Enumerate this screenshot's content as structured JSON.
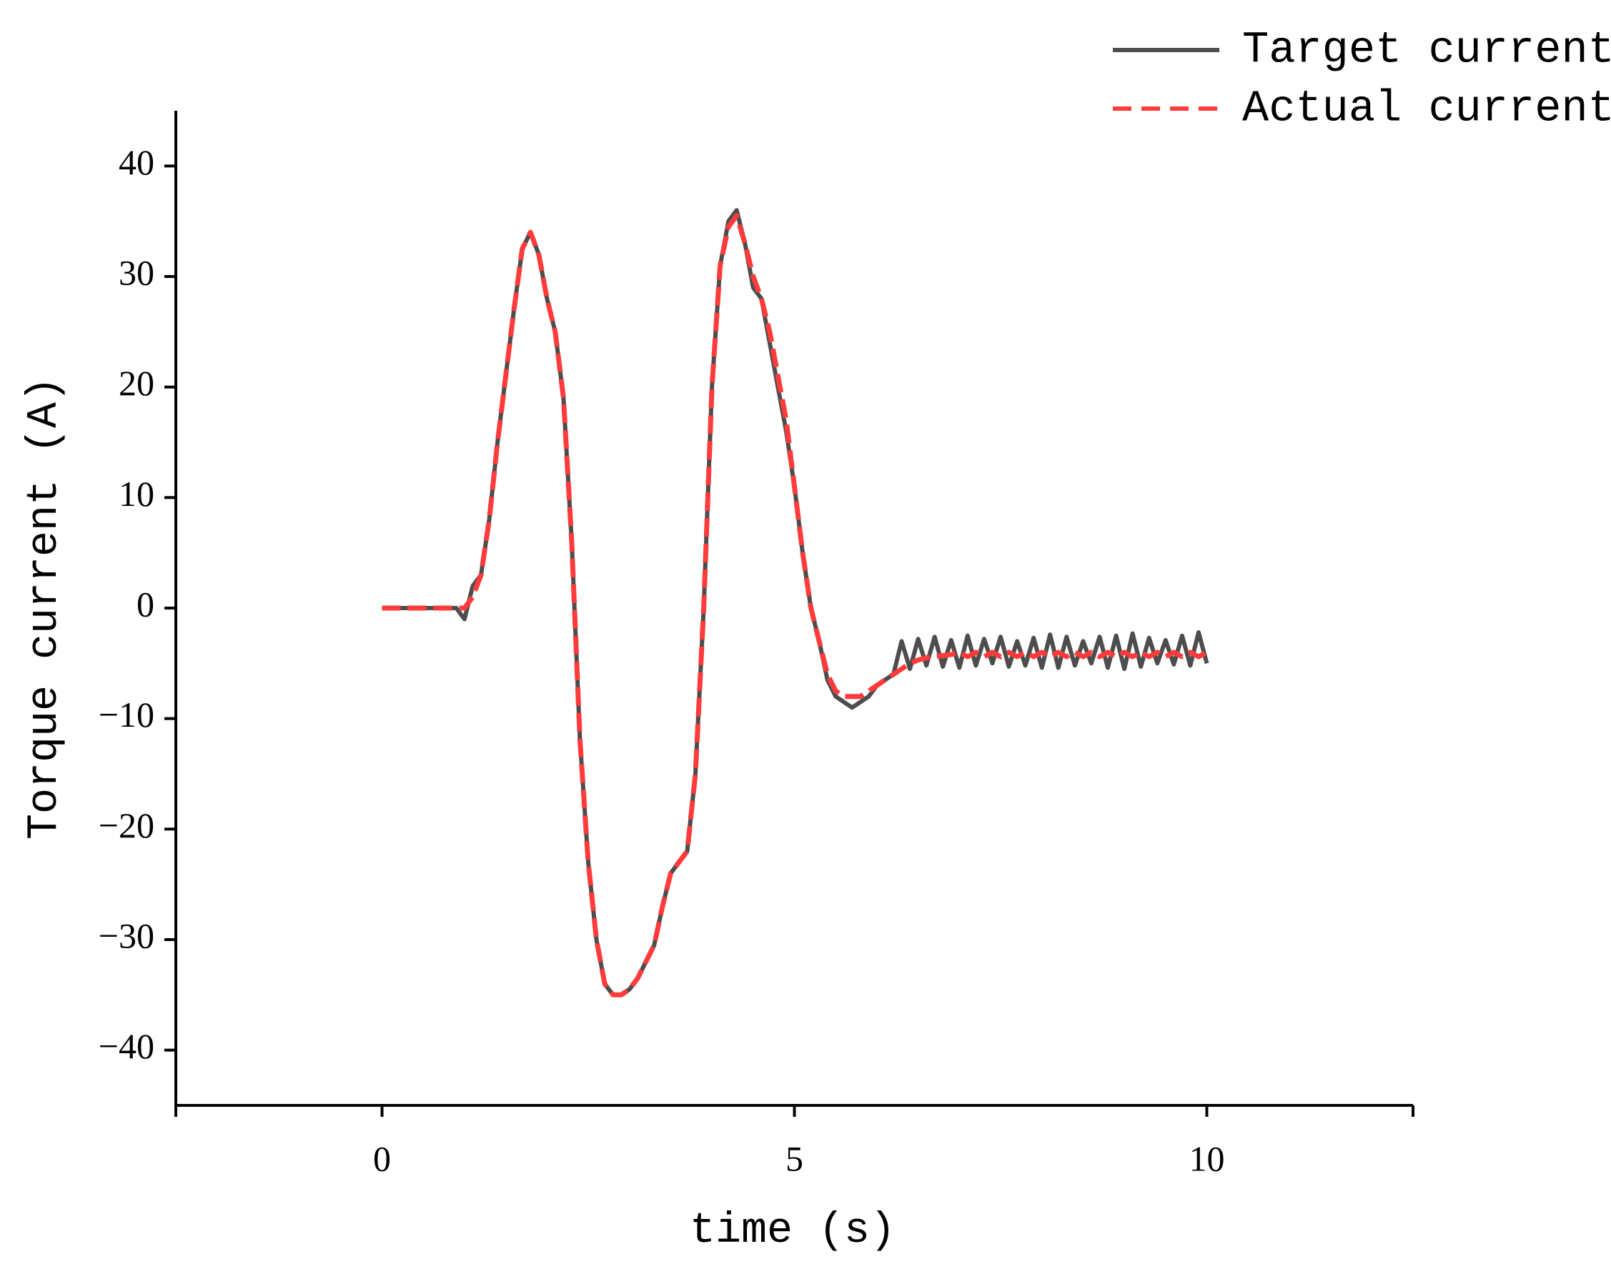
{
  "chart_data": {
    "type": "line",
    "x_label": "time (s)",
    "y_label": "Torque current (A)",
    "xlim": [
      -2.5,
      12.5
    ],
    "xticks": [
      0,
      5,
      10
    ],
    "ylim": [
      -45,
      45
    ],
    "yticks": [
      {
        "value": -40,
        "label": "−40"
      },
      {
        "value": -30,
        "label": "−30"
      },
      {
        "value": -20,
        "label": "−20"
      },
      {
        "value": -10,
        "label": "−10"
      },
      0,
      10,
      20,
      30,
      40
    ],
    "legend": "upper right",
    "x": [
      0,
      0.1,
      0.2,
      0.3,
      0.4,
      0.5,
      0.6,
      0.7,
      0.8,
      0.9,
      1,
      1.1,
      1.2,
      1.3,
      1.4,
      1.5,
      1.6,
      1.7,
      1.8,
      1.9,
      2,
      2.1,
      2.2,
      2.3,
      2.4,
      2.5,
      2.6,
      2.7,
      2.8,
      2.9,
      3,
      3.1,
      3.2,
      3.3,
      3.4,
      3.5,
      3.6,
      3.7,
      3.8,
      3.9,
      4,
      4.1,
      4.2,
      4.3,
      4.4,
      4.5,
      4.6,
      4.7,
      4.8,
      4.9,
      5,
      5.1,
      5.2,
      5.3,
      5.4,
      5.5,
      5.6,
      5.7,
      5.8,
      5.9,
      6,
      6.1,
      6.2,
      6.3,
      6.4,
      6.5,
      6.6,
      6.7,
      6.8,
      6.9,
      7,
      7.1,
      7.2,
      7.3,
      7.4,
      7.5,
      7.6,
      7.7,
      7.8,
      7.9,
      8,
      8.1,
      8.2,
      8.3,
      8.4,
      8.5,
      8.6,
      8.7,
      8.8,
      8.9,
      9,
      9.1,
      9.2,
      9.3,
      9.4,
      9.5,
      9.6,
      9.7,
      9.8,
      9.9,
      10
    ],
    "series": [
      {
        "name": "Target current",
        "color": "#4d4d4d",
        "dash": false,
        "values": [
          0,
          0,
          0,
          0,
          0,
          0,
          0,
          0,
          0,
          0,
          -1,
          2,
          3,
          8,
          15,
          21,
          27,
          32.5,
          34,
          32,
          28,
          25,
          19,
          6,
          -12,
          -23,
          -30,
          -34,
          -35,
          -35,
          -34.5,
          -33.5,
          -32,
          -30.5,
          -27,
          -24,
          -23,
          -22,
          -15,
          0,
          20,
          31,
          35,
          36,
          33,
          29,
          28,
          24,
          20,
          16,
          11,
          5,
          0,
          -3,
          -6.5,
          -8,
          -8.5,
          -9,
          -8.5,
          -8,
          -7,
          -6.5,
          -6,
          -3,
          -5.5,
          -2.8,
          -5.2,
          -2.6,
          -5.3,
          -2.9,
          -5.4,
          -2.5,
          -5.2,
          -2.8,
          -5.0,
          -2.6,
          -5.3,
          -3.0,
          -5.2,
          -2.7,
          -5.4,
          -2.4,
          -5.4,
          -2.6,
          -5.2,
          -3.0,
          -5.0,
          -2.6,
          -5.4,
          -2.5,
          -5.5,
          -2.3,
          -5.3,
          -2.7,
          -5.0,
          -2.9,
          -5.1,
          -2.5,
          -5.2,
          -2.2,
          -5.0
        ]
      },
      {
        "name": "Actual current",
        "color": "#ff3b3b",
        "dash": true,
        "values": [
          0,
          0,
          0,
          0,
          0,
          0,
          0,
          0,
          0,
          0,
          0,
          1,
          3,
          8,
          15,
          21,
          27,
          32.5,
          34,
          32,
          28,
          25,
          19,
          6,
          -12,
          -23,
          -30,
          -34,
          -35,
          -35,
          -34.5,
          -33.5,
          -32,
          -30.5,
          -27,
          -24,
          -23,
          -22,
          -15,
          0,
          20,
          31,
          34.5,
          35.5,
          33,
          30,
          28,
          25,
          21,
          17,
          11,
          5,
          0,
          -3,
          -6,
          -7.5,
          -8,
          -8,
          -8,
          -7.5,
          -7,
          -6.5,
          -6,
          -5.5,
          -5,
          -4.7,
          -4.5,
          -4.4,
          -4.3,
          -4.2,
          -4.0,
          -4.4,
          -4.0,
          -4.4,
          -4.0,
          -4.4,
          -4.0,
          -4.4,
          -4.0,
          -4.4,
          -4.0,
          -4.4,
          -4.0,
          -4.4,
          -4.0,
          -4.4,
          -4.0,
          -4.4,
          -4.0,
          -4.4,
          -4.0,
          -4.4,
          -4.0,
          -4.4,
          -4.0,
          -4.4,
          -4.0,
          -4.4,
          -4.0,
          -4.4,
          -4.0
        ]
      }
    ]
  }
}
